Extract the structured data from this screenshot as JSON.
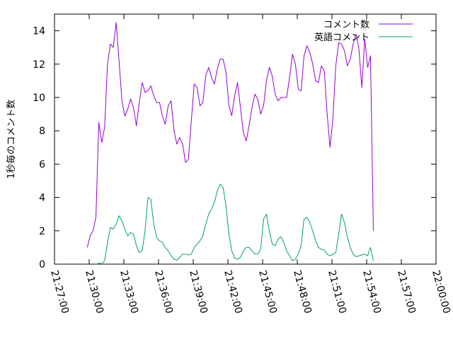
{
  "chart_data": {
    "type": "line",
    "title": "",
    "xlabel": "",
    "ylabel": "1秒毎のコメント数",
    "xlim": [
      "21:27:00",
      "22:00:00"
    ],
    "ylim": [
      0,
      15
    ],
    "grid": false,
    "legend_position": "top-right",
    "x_ticks": [
      "21:27:00",
      "21:30:00",
      "21:33:00",
      "21:36:00",
      "21:39:00",
      "21:42:00",
      "21:45:00",
      "21:48:00",
      "21:51:00",
      "21:54:00",
      "21:57:00",
      "22:00:00"
    ],
    "y_ticks": [
      "0",
      "2",
      "4",
      "6",
      "8",
      "10",
      "12",
      "14"
    ],
    "series": [
      {
        "name": "コメント数",
        "color": "#9400d3",
        "points": [
          [
            "21:29:50",
            1.0
          ],
          [
            "21:30:05",
            1.7
          ],
          [
            "21:30:20",
            2.0
          ],
          [
            "21:30:35",
            2.8
          ],
          [
            "21:30:50",
            8.5
          ],
          [
            "21:31:05",
            7.3
          ],
          [
            "21:31:20",
            8.2
          ],
          [
            "21:31:35",
            12.0
          ],
          [
            "21:31:50",
            13.2
          ],
          [
            "21:32:05",
            13.0
          ],
          [
            "21:32:20",
            14.5
          ],
          [
            "21:32:35",
            12.2
          ],
          [
            "21:32:50",
            9.8
          ],
          [
            "21:33:05",
            8.9
          ],
          [
            "21:33:20",
            9.3
          ],
          [
            "21:33:35",
            9.9
          ],
          [
            "21:33:50",
            9.4
          ],
          [
            "21:34:05",
            8.3
          ],
          [
            "21:34:20",
            9.7
          ],
          [
            "21:34:35",
            10.9
          ],
          [
            "21:34:50",
            10.3
          ],
          [
            "21:35:05",
            10.4
          ],
          [
            "21:35:20",
            10.7
          ],
          [
            "21:35:35",
            10.1
          ],
          [
            "21:35:50",
            9.7
          ],
          [
            "21:36:05",
            9.7
          ],
          [
            "21:36:20",
            8.9
          ],
          [
            "21:36:35",
            8.4
          ],
          [
            "21:36:50",
            9.5
          ],
          [
            "21:37:05",
            9.8
          ],
          [
            "21:37:20",
            8.0
          ],
          [
            "21:37:35",
            7.2
          ],
          [
            "21:37:50",
            7.6
          ],
          [
            "21:38:05",
            7.2
          ],
          [
            "21:38:20",
            6.1
          ],
          [
            "21:38:35",
            6.3
          ],
          [
            "21:38:50",
            8.6
          ],
          [
            "21:39:05",
            10.8
          ],
          [
            "21:39:20",
            10.6
          ],
          [
            "21:39:35",
            9.5
          ],
          [
            "21:39:50",
            9.7
          ],
          [
            "21:40:05",
            11.3
          ],
          [
            "21:40:20",
            11.8
          ],
          [
            "21:40:35",
            11.2
          ],
          [
            "21:40:50",
            10.8
          ],
          [
            "21:41:05",
            11.7
          ],
          [
            "21:41:20",
            12.3
          ],
          [
            "21:41:35",
            12.3
          ],
          [
            "21:41:50",
            11.5
          ],
          [
            "21:42:05",
            9.5
          ],
          [
            "21:42:20",
            8.9
          ],
          [
            "21:42:35",
            10.1
          ],
          [
            "21:42:50",
            10.9
          ],
          [
            "21:43:05",
            9.4
          ],
          [
            "21:43:20",
            7.9
          ],
          [
            "21:43:35",
            7.4
          ],
          [
            "21:43:50",
            8.3
          ],
          [
            "21:44:05",
            9.4
          ],
          [
            "21:44:20",
            10.2
          ],
          [
            "21:44:35",
            9.9
          ],
          [
            "21:44:50",
            9.0
          ],
          [
            "21:45:05",
            9.5
          ],
          [
            "21:45:20",
            11.0
          ],
          [
            "21:45:35",
            11.8
          ],
          [
            "21:45:50",
            11.3
          ],
          [
            "21:46:05",
            10.2
          ],
          [
            "21:46:20",
            9.8
          ],
          [
            "21:46:35",
            10.0
          ],
          [
            "21:46:50",
            10.0
          ],
          [
            "21:47:05",
            10.0
          ],
          [
            "21:47:20",
            11.2
          ],
          [
            "21:47:35",
            12.6
          ],
          [
            "21:47:50",
            12.0
          ],
          [
            "21:48:05",
            10.5
          ],
          [
            "21:48:20",
            10.4
          ],
          [
            "21:48:35",
            12.5
          ],
          [
            "21:48:50",
            13.1
          ],
          [
            "21:49:05",
            12.7
          ],
          [
            "21:49:20",
            12.0
          ],
          [
            "21:49:35",
            11.0
          ],
          [
            "21:49:50",
            10.9
          ],
          [
            "21:50:05",
            11.9
          ],
          [
            "21:50:20",
            11.6
          ],
          [
            "21:50:35",
            9.0
          ],
          [
            "21:50:50",
            7.0
          ],
          [
            "21:51:05",
            8.8
          ],
          [
            "21:51:20",
            11.9
          ],
          [
            "21:51:35",
            13.3
          ],
          [
            "21:51:50",
            13.2
          ],
          [
            "21:52:05",
            12.8
          ],
          [
            "21:52:20",
            11.9
          ],
          [
            "21:52:35",
            12.3
          ],
          [
            "21:52:50",
            13.2
          ],
          [
            "21:53:05",
            13.8
          ],
          [
            "21:53:20",
            12.9
          ],
          [
            "21:53:35",
            10.6
          ],
          [
            "21:53:50",
            13.5
          ],
          [
            "21:54:05",
            11.8
          ],
          [
            "21:54:20",
            12.5
          ],
          [
            "21:54:35",
            2.0
          ]
        ]
      },
      {
        "name": "英語コメント",
        "color": "#009e73",
        "points": [
          [
            "21:30:35",
            0.0
          ],
          [
            "21:30:50",
            0.05
          ],
          [
            "21:31:05",
            0.02
          ],
          [
            "21:31:20",
            0.2
          ],
          [
            "21:31:35",
            1.3
          ],
          [
            "21:31:50",
            2.2
          ],
          [
            "21:32:05",
            2.1
          ],
          [
            "21:32:20",
            2.4
          ],
          [
            "21:32:35",
            2.9
          ],
          [
            "21:32:50",
            2.6
          ],
          [
            "21:33:05",
            2.1
          ],
          [
            "21:33:20",
            1.7
          ],
          [
            "21:33:35",
            1.9
          ],
          [
            "21:33:50",
            1.8
          ],
          [
            "21:34:05",
            1.1
          ],
          [
            "21:34:20",
            0.7
          ],
          [
            "21:34:35",
            0.8
          ],
          [
            "21:34:50",
            2.0
          ],
          [
            "21:35:05",
            4.0
          ],
          [
            "21:35:20",
            3.9
          ],
          [
            "21:35:35",
            2.4
          ],
          [
            "21:35:50",
            1.6
          ],
          [
            "21:36:05",
            1.4
          ],
          [
            "21:36:20",
            1.3
          ],
          [
            "21:36:35",
            1.0
          ],
          [
            "21:36:50",
            0.8
          ],
          [
            "21:37:05",
            0.5
          ],
          [
            "21:37:20",
            0.3
          ],
          [
            "21:37:35",
            0.25
          ],
          [
            "21:37:50",
            0.4
          ],
          [
            "21:38:05",
            0.6
          ],
          [
            "21:38:20",
            0.6
          ],
          [
            "21:38:35",
            0.55
          ],
          [
            "21:38:50",
            0.6
          ],
          [
            "21:39:05",
            1.0
          ],
          [
            "21:39:20",
            1.2
          ],
          [
            "21:39:35",
            1.4
          ],
          [
            "21:39:50",
            1.7
          ],
          [
            "21:40:05",
            2.4
          ],
          [
            "21:40:20",
            3.0
          ],
          [
            "21:40:35",
            3.3
          ],
          [
            "21:40:50",
            3.7
          ],
          [
            "21:41:05",
            4.4
          ],
          [
            "21:41:20",
            4.8
          ],
          [
            "21:41:35",
            4.6
          ],
          [
            "21:41:50",
            3.5
          ],
          [
            "21:42:05",
            1.8
          ],
          [
            "21:42:20",
            0.8
          ],
          [
            "21:42:35",
            0.35
          ],
          [
            "21:42:50",
            0.3
          ],
          [
            "21:43:05",
            0.4
          ],
          [
            "21:43:20",
            0.8
          ],
          [
            "21:43:35",
            1.0
          ],
          [
            "21:43:50",
            1.0
          ],
          [
            "21:44:05",
            0.8
          ],
          [
            "21:44:20",
            0.6
          ],
          [
            "21:44:35",
            0.6
          ],
          [
            "21:44:50",
            0.9
          ],
          [
            "21:45:05",
            2.7
          ],
          [
            "21:45:20",
            3.0
          ],
          [
            "21:45:35",
            2.0
          ],
          [
            "21:45:50",
            1.2
          ],
          [
            "21:46:05",
            1.1
          ],
          [
            "21:46:20",
            1.5
          ],
          [
            "21:46:35",
            1.65
          ],
          [
            "21:46:50",
            1.3
          ],
          [
            "21:47:05",
            0.8
          ],
          [
            "21:47:20",
            0.5
          ],
          [
            "21:47:35",
            0.2
          ],
          [
            "21:47:50",
            0.3
          ],
          [
            "21:48:05",
            0.6
          ],
          [
            "21:48:20",
            1.1
          ],
          [
            "21:48:35",
            2.7
          ],
          [
            "21:48:50",
            2.8
          ],
          [
            "21:49:05",
            2.5
          ],
          [
            "21:49:20",
            2.0
          ],
          [
            "21:49:35",
            1.4
          ],
          [
            "21:49:50",
            1.0
          ],
          [
            "21:50:05",
            0.9
          ],
          [
            "21:50:20",
            0.85
          ],
          [
            "21:50:35",
            0.6
          ],
          [
            "21:50:50",
            0.5
          ],
          [
            "21:51:05",
            0.6
          ],
          [
            "21:51:20",
            0.7
          ],
          [
            "21:51:35",
            1.8
          ],
          [
            "21:51:50",
            3.0
          ],
          [
            "21:52:05",
            2.5
          ],
          [
            "21:52:20",
            1.6
          ],
          [
            "21:52:35",
            1.0
          ],
          [
            "21:52:50",
            0.6
          ],
          [
            "21:53:05",
            0.45
          ],
          [
            "21:53:20",
            0.5
          ],
          [
            "21:53:35",
            0.55
          ],
          [
            "21:53:50",
            0.6
          ],
          [
            "21:54:05",
            0.5
          ],
          [
            "21:54:20",
            1.0
          ],
          [
            "21:54:35",
            0.2
          ]
        ]
      }
    ]
  }
}
